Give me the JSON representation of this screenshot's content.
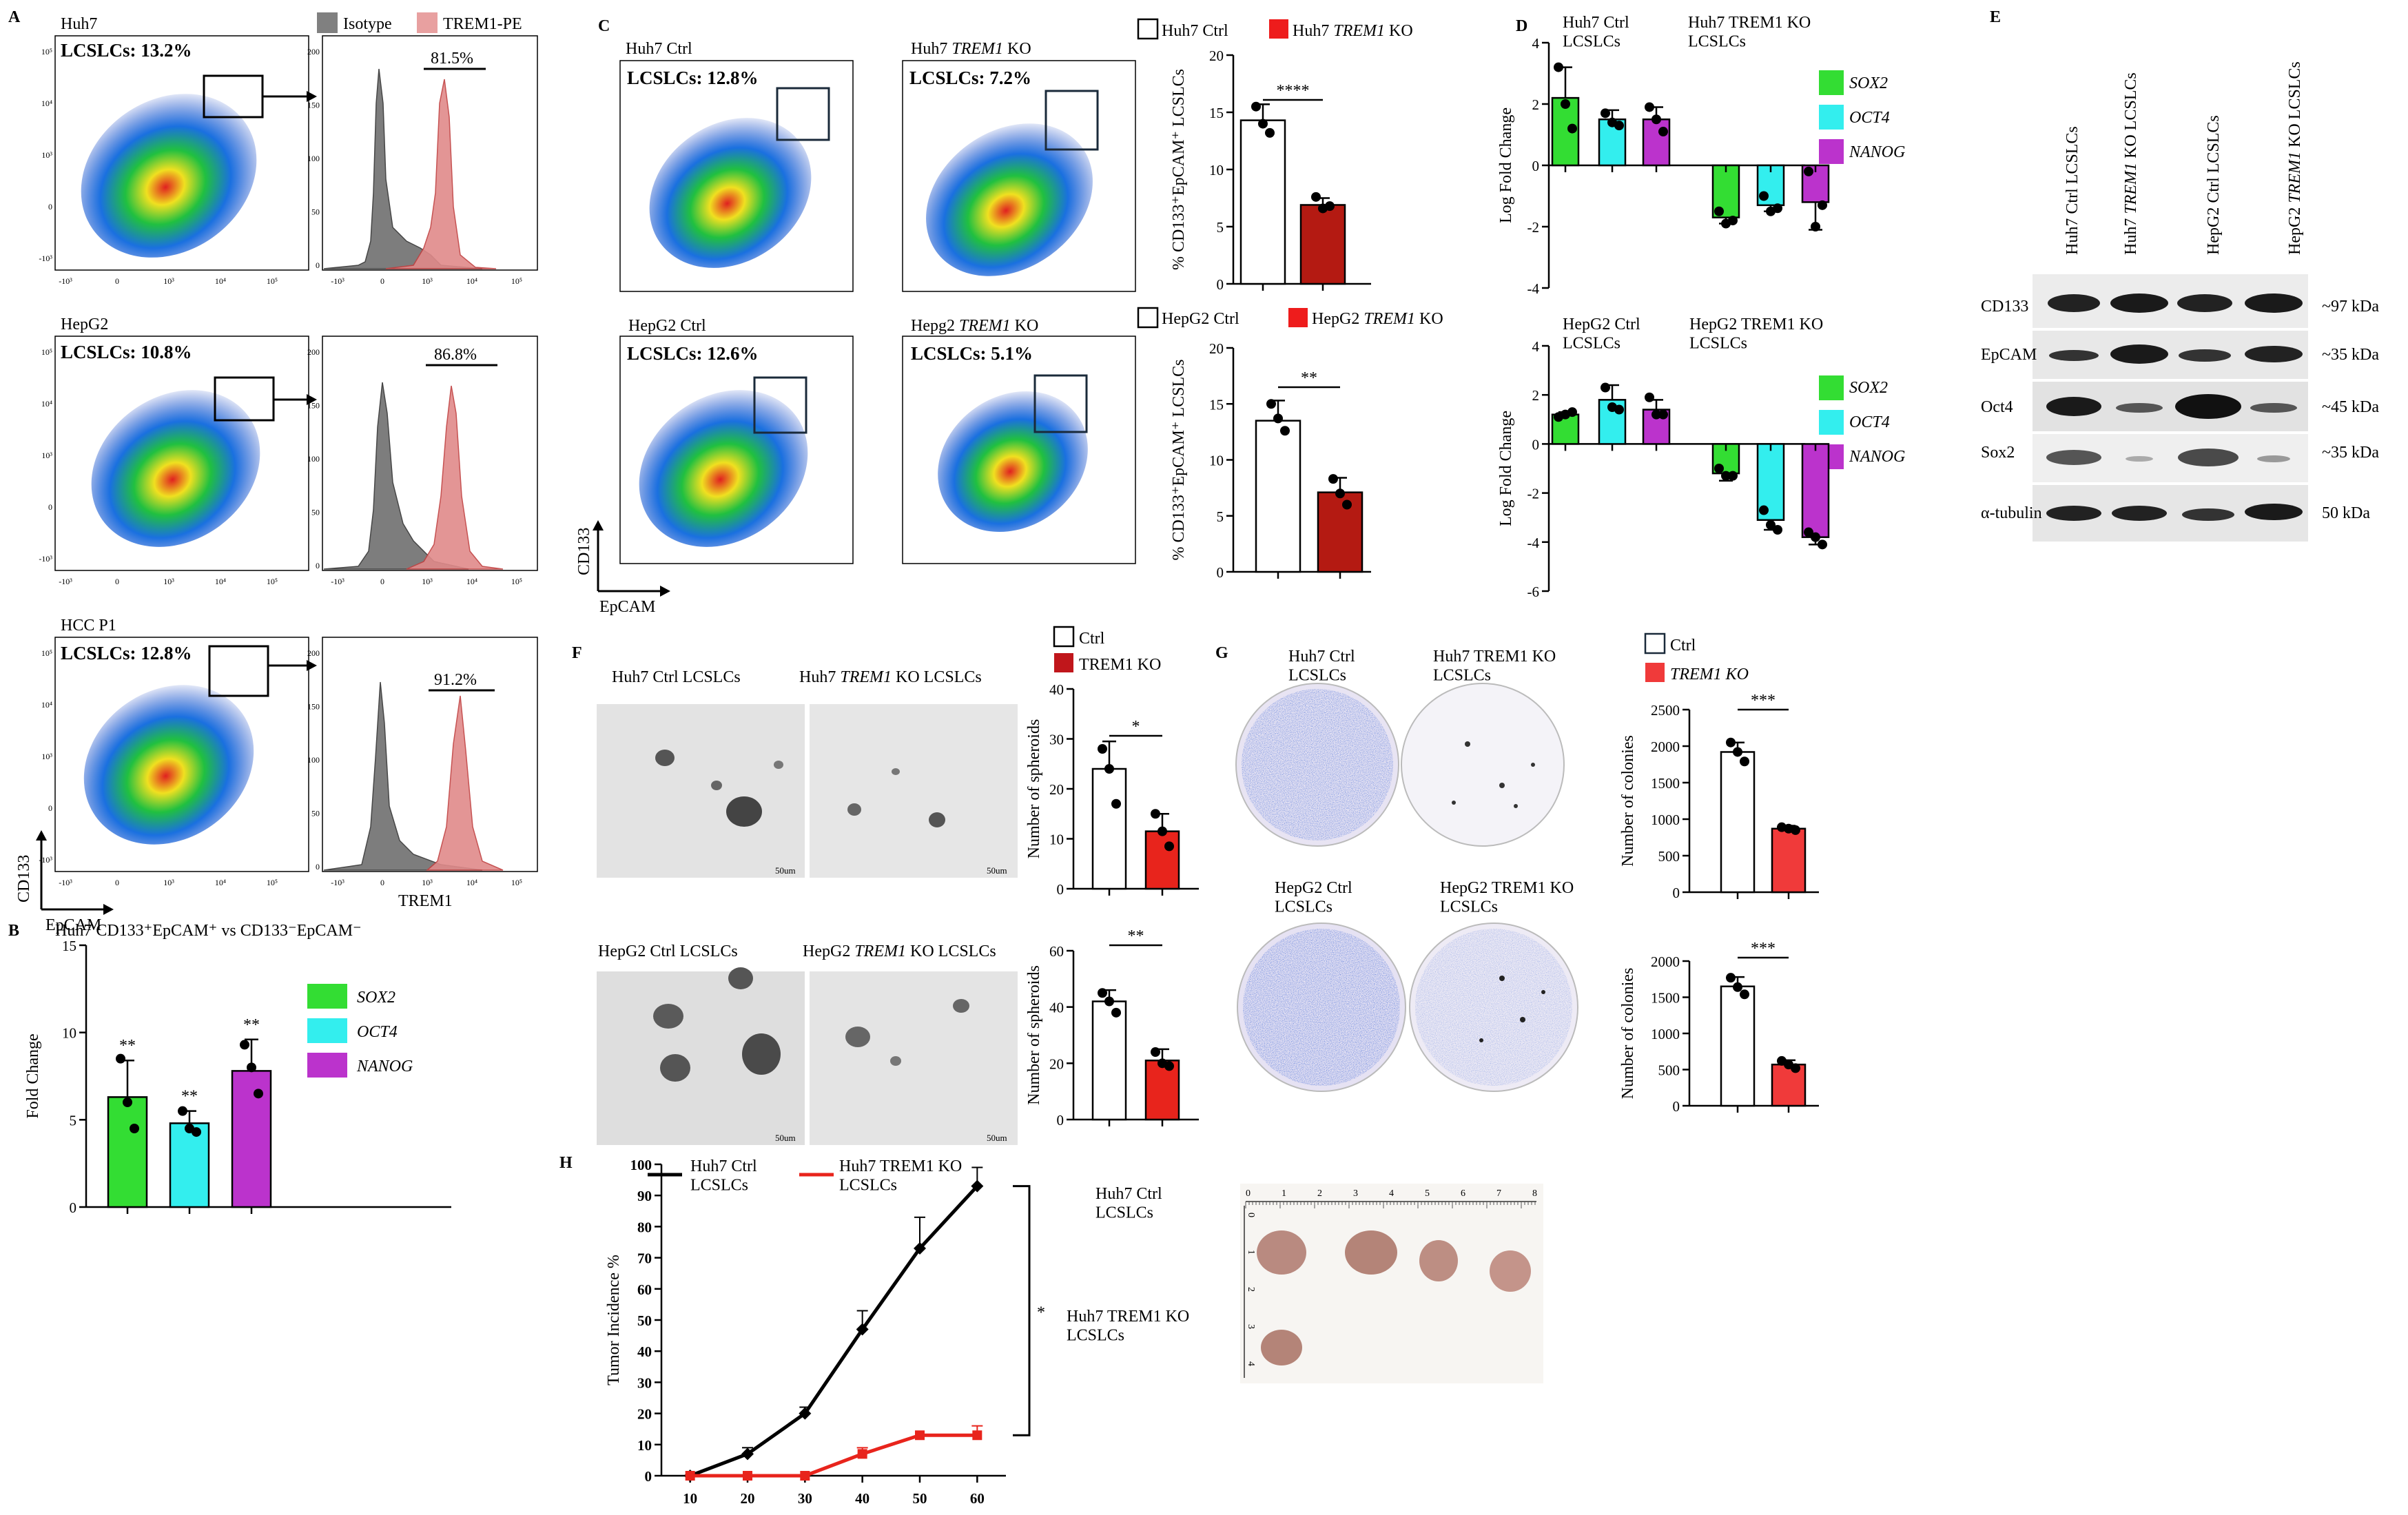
{
  "panels": {
    "a": "A",
    "b": "B",
    "c": "C",
    "d": "D",
    "e": "E",
    "f": "F",
    "g": "G",
    "h": "H"
  },
  "panel_a": {
    "rows": [
      {
        "cell": "Huh7",
        "gate": "LCSLCs: 13.2%",
        "pct": "81.5%"
      },
      {
        "cell": "HepG2",
        "gate": "LCSLCs: 10.8%",
        "pct": "86.8%"
      },
      {
        "cell": "HCC P1",
        "gate": "LCSLCs: 12.8%",
        "pct": "91.2%"
      }
    ],
    "legend": {
      "isotype": "Isotype",
      "trem1": "TREM1-PE"
    },
    "y_axis": "CD133",
    "x_axis": "EpCAM",
    "hist_x": "TREM1",
    "dot_xticks": [
      "-10³",
      "0",
      "10³",
      "10⁴",
      "10⁵"
    ],
    "dot_yticks": [
      "10⁵",
      "10⁴",
      "10³",
      "0",
      "-10³"
    ],
    "hist_yticks": [
      "200",
      "150",
      "100",
      "50",
      "0"
    ],
    "hist_xticks": [
      "-10³",
      "0",
      "10³",
      "10⁴",
      "10⁵"
    ]
  },
  "panel_b": {
    "title": "Huh7 CD133⁺EpCAM⁺ vs CD133⁻EpCAM⁻",
    "ylabel": "Fold Change",
    "yticks": [
      "15",
      "10",
      "5",
      "0"
    ]
  },
  "panel_c": {
    "plots": [
      {
        "title": "Huh7 Ctrl",
        "gate": "LCSLCs: 12.8%"
      },
      {
        "title": "Huh7 TREM1 KO",
        "gate": "LCSLCs: 7.2%"
      },
      {
        "title": "HepG2 Ctrl",
        "gate": "LCSLCs: 12.6%"
      },
      {
        "title": "Hepg2 TREM1 KO",
        "gate": "LCSLCs: 5.1%"
      }
    ],
    "y_axis": "CD133",
    "x_axis": "EpCAM",
    "legend_top": {
      "ctrl": "Huh7 Ctrl",
      "ko": "Huh7 TREM1 KO"
    },
    "legend_bottom": {
      "ctrl": "HepG2 Ctrl",
      "ko": "HepG2 TREM1 KO"
    },
    "ylabel": "% CD133⁺EpCAM⁺ LCSLCs",
    "yticks_top": [
      "20",
      "15",
      "10",
      "5",
      "0"
    ],
    "yticks_bottom": [
      "20",
      "15",
      "10",
      "5",
      "0"
    ],
    "sig_top": "****",
    "sig_bottom": "**"
  },
  "panel_d": {
    "top": {
      "left": "Huh7 Ctrl\nLCSLCs",
      "right": "Huh7 TREM1 KO\nLCSLCs",
      "yticks": [
        "4",
        "2",
        "0",
        "-2",
        "-4"
      ]
    },
    "bottom": {
      "left": "HepG2  Ctrl\nLCSLCs",
      "right": "HepG2 TREM1 KO\nLCSLCs",
      "yticks": [
        "4",
        "2",
        "0",
        "-2",
        "-4",
        "-6"
      ]
    },
    "ylabel": "Log Fold Change"
  },
  "genes": [
    "SOX2",
    "OCT4",
    "NANOG"
  ],
  "gene_colors": {
    "SOX2": "#33dd33",
    "OCT4": "#33eeee",
    "NANOG": "#bb33cc"
  },
  "panel_e": {
    "lanes": [
      "Huh7 Ctrl LCSLCs",
      "Huh7 TREM1 KO LCSLCs",
      "HepG2 Ctrl LCSLCs",
      "HepG2 TREM1 KO LCSLCs"
    ],
    "proteins": [
      "CD133",
      "EpCAM",
      "Oct4",
      "Sox2",
      "α-tubulin"
    ],
    "sizes": [
      "~97 kDa",
      "~35 kDa",
      "~45 kDa",
      "~35 kDa",
      "50 kDa"
    ]
  },
  "panel_f": {
    "images": [
      "Huh7 Ctrl LCSLCs",
      "Huh7 TREM1 KO LCSLCs",
      "HepG2  Ctrl LCSLCs",
      "HepG2 TREM1 KO LCSLCs"
    ],
    "legend": {
      "ctrl": "Ctrl",
      "ko": "TREM1 KO"
    },
    "ylabel": "Number of spheroids",
    "scale": "50um",
    "yticks_top": [
      "40",
      "30",
      "20",
      "10",
      "0"
    ],
    "yticks_bottom": [
      "60",
      "40",
      "20",
      "0"
    ],
    "sig_top": "*",
    "sig_bottom": "**"
  },
  "panel_g": {
    "images": [
      "Huh7 Ctrl\nLCSLCs",
      "Huh7 TREM1 KO\nLCSLCs",
      "HepG2 Ctrl\nLCSLCs",
      "HepG2 TREM1 KO\nLCSLCs"
    ],
    "legend": {
      "ctrl": "Ctrl",
      "ko": "TREM1 KO"
    },
    "ylabel": "Number of colonies",
    "yticks_top": [
      "2500",
      "2000",
      "1500",
      "1000",
      "500",
      "0"
    ],
    "yticks_bottom": [
      "2000",
      "1500",
      "1000",
      "500",
      "0"
    ],
    "sig_top": "***",
    "sig_bottom": "***"
  },
  "panel_h": {
    "legend": {
      "ctrl": "Huh7 Ctrl\nLCSLCs",
      "ko": "Huh7 TREM1 KO\nLCSLCs"
    },
    "ylabel": "Tumor Incidence %",
    "sig": "*",
    "photo_labels": [
      "Huh7 Ctrl\nLCSLCs",
      "Huh7 TREM1 KO\nLCSLCs"
    ],
    "ruler": [
      "0",
      "1",
      "2",
      "3",
      "4",
      "5",
      "6",
      "7",
      "8"
    ],
    "ruler_v": [
      "0",
      "1",
      "2",
      "3",
      "4"
    ]
  },
  "chart_data": [
    {
      "type": "bar",
      "id": "B",
      "title": "Huh7 CD133⁺EpCAM⁺ vs CD133⁻EpCAM⁻",
      "ylabel": "Fold Change",
      "ylim": [
        0,
        15
      ],
      "categories": [
        "SOX2",
        "OCT4",
        "NANOG"
      ],
      "values": [
        6.3,
        4.8,
        7.8
      ],
      "errors": [
        2.1,
        0.7,
        1.8
      ],
      "points": [
        [
          8.5,
          6,
          4.5
        ],
        [
          5.5,
          4.5,
          4.3
        ],
        [
          9.3,
          8,
          6.5
        ]
      ],
      "sig": [
        "**",
        "**",
        "**"
      ]
    },
    {
      "type": "bar",
      "id": "C-top",
      "ylim": [
        0,
        20
      ],
      "categories": [
        "Huh7 Ctrl",
        "Huh7 TREM1 KO"
      ],
      "values": [
        14.3,
        6.9
      ],
      "errors": [
        1.4,
        0.6
      ],
      "points": [
        [
          15.5,
          14,
          13.2
        ],
        [
          7.6,
          6.6,
          6.8
        ]
      ],
      "sig": "****"
    },
    {
      "type": "bar",
      "id": "C-bottom",
      "ylim": [
        0,
        20
      ],
      "categories": [
        "HepG2 Ctrl",
        "HepG2 TREM1 KO"
      ],
      "values": [
        13.5,
        7.1
      ],
      "errors": [
        1.8,
        1.3
      ],
      "points": [
        [
          15,
          13.7,
          12.6
        ],
        [
          8.3,
          7,
          6
        ]
      ],
      "sig": "**"
    },
    {
      "type": "bar",
      "id": "D-top",
      "ylim": [
        -4,
        4
      ],
      "categories": [
        "Ctrl SOX2",
        "Ctrl OCT4",
        "Ctrl NANOG",
        "KO SOX2",
        "KO OCT4",
        "KO NANOG"
      ],
      "values": [
        2.2,
        1.5,
        1.5,
        -1.7,
        -1.3,
        -1.2
      ],
      "errors": [
        1.0,
        0.3,
        0.4,
        0.2,
        0.2,
        0.9
      ],
      "points": [
        [
          3.2,
          2,
          1.2
        ],
        [
          1.7,
          1.4,
          1.3
        ],
        [
          1.9,
          1.5,
          1.1
        ],
        [
          -1.5,
          -1.9,
          -1.8
        ],
        [
          -1,
          -1.5,
          -1.4
        ],
        [
          -0.2,
          -2,
          -1.3
        ]
      ]
    },
    {
      "type": "bar",
      "id": "D-bottom",
      "ylim": [
        -6,
        4
      ],
      "categories": [
        "Ctrl SOX2",
        "Ctrl OCT4",
        "Ctrl NANOG",
        "KO SOX2",
        "KO OCT4",
        "KO NANOG"
      ],
      "values": [
        1.2,
        1.8,
        1.4,
        -1.2,
        -3.1,
        -3.8
      ],
      "errors": [
        0.1,
        0.6,
        0.4,
        0.3,
        0.4,
        0.3
      ],
      "points": [
        [
          1.1,
          1.2,
          1.3
        ],
        [
          2.3,
          1.5,
          1.4
        ],
        [
          1.9,
          1.2,
          1.2
        ],
        [
          -1,
          -1.3,
          -1.3
        ],
        [
          -2.7,
          -3.3,
          -3.5
        ],
        [
          -3.6,
          -3.8,
          -4.1
        ]
      ]
    },
    {
      "type": "bar",
      "id": "F-top",
      "ylabel": "Number of spheroids",
      "ylim": [
        0,
        40
      ],
      "categories": [
        "Ctrl",
        "TREM1 KO"
      ],
      "values": [
        24,
        11.5
      ],
      "errors": [
        5.5,
        3.5
      ],
      "points": [
        [
          28,
          24,
          17
        ],
        [
          15,
          11.5,
          8.5
        ]
      ],
      "sig": "*"
    },
    {
      "type": "bar",
      "id": "F-bottom",
      "ylabel": "Number of spheroids",
      "ylim": [
        0,
        60
      ],
      "categories": [
        "Ctrl",
        "TREM1 KO"
      ],
      "values": [
        42,
        21
      ],
      "errors": [
        4,
        4
      ],
      "points": [
        [
          45,
          42,
          38
        ],
        [
          24,
          20,
          19
        ]
      ],
      "sig": "**"
    },
    {
      "type": "bar",
      "id": "G-top",
      "ylabel": "Number of colonies",
      "ylim": [
        0,
        2500
      ],
      "categories": [
        "Ctrl",
        "TREM1 KO"
      ],
      "values": [
        1920,
        870
      ],
      "errors": [
        130,
        40
      ],
      "points": [
        [
          2050,
          1920,
          1790
        ],
        [
          890,
          870,
          850
        ]
      ],
      "sig": "***"
    },
    {
      "type": "bar",
      "id": "G-bottom",
      "ylabel": "Number of colonies",
      "ylim": [
        0,
        2000
      ],
      "categories": [
        "Ctrl",
        "TREM1 KO"
      ],
      "values": [
        1650,
        570
      ],
      "errors": [
        130,
        60
      ],
      "points": [
        [
          1770,
          1640,
          1540
        ],
        [
          620,
          570,
          520
        ]
      ],
      "sig": "***"
    },
    {
      "type": "line",
      "id": "H",
      "ylabel": "Tumor Incidence %",
      "ylim": [
        0,
        100
      ],
      "xlim": [
        5,
        65
      ],
      "x": [
        10,
        20,
        30,
        40,
        50,
        60
      ],
      "series": [
        {
          "name": "Huh7 Ctrl LCSLCs",
          "color": "#000000",
          "values": [
            0,
            7,
            20,
            47,
            73,
            93
          ],
          "errors": [
            0,
            2,
            2,
            6,
            10,
            6
          ]
        },
        {
          "name": "Huh7 TREM1 KO LCSLCs",
          "color": "#e8241c",
          "values": [
            0,
            0,
            0,
            7,
            13,
            13
          ],
          "errors": [
            0,
            0,
            0,
            2,
            0,
            3
          ]
        }
      ],
      "xticks": [
        "10",
        "20",
        "30",
        "40",
        "50",
        "60"
      ],
      "yticks": [
        "100",
        "90",
        "80",
        "70",
        "60",
        "50",
        "40",
        "30",
        "20",
        "10",
        "0"
      ],
      "sig": "*"
    }
  ]
}
